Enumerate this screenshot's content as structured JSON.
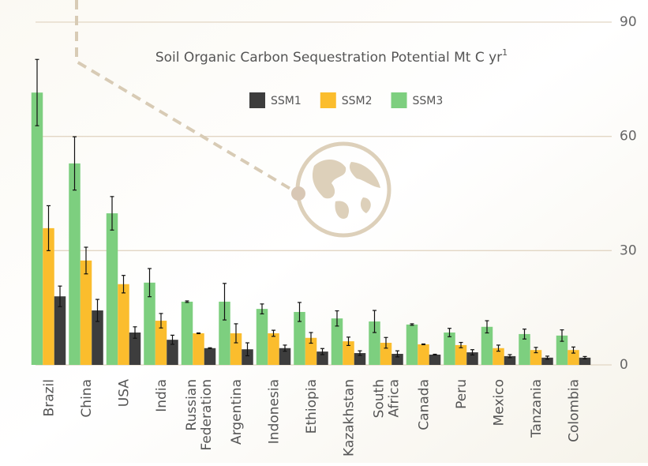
{
  "chart_data": {
    "type": "bar",
    "title": "Soil Organic Carbon Sequestration Potential  Mt C yr",
    "title_superscript": "1",
    "categories": [
      "Brazil",
      "China",
      "USA",
      "India",
      "Russian Federation",
      "Argentina",
      "Indonesia",
      "Ethiopia",
      "Kazakhstan",
      "South Africa",
      "Canada",
      "Peru",
      "Mexico",
      "Tanzania",
      "Colombia"
    ],
    "series": [
      {
        "name": "SSM1",
        "color": "#3d3d3d",
        "values": [
          18,
          14.3,
          8.5,
          6.6,
          4.4,
          4.1,
          4.4,
          3.5,
          3.1,
          2.9,
          2.7,
          3.3,
          2.3,
          1.9,
          1.9
        ],
        "errors": [
          2.7,
          2.9,
          1.5,
          1.2,
          0.1,
          1.7,
          0.8,
          0.8,
          0.6,
          0.8,
          0.1,
          0.7,
          0.4,
          0.4,
          0.3
        ]
      },
      {
        "name": "SSM2",
        "color": "#fbbd2d",
        "values": [
          35.9,
          27.4,
          21.2,
          11.6,
          8.3,
          8.3,
          8.3,
          7.1,
          6.2,
          5.8,
          5.4,
          5.2,
          4.4,
          3.9,
          3.9
        ],
        "errors": [
          5.9,
          3.5,
          2.3,
          1.9,
          0.1,
          2.5,
          0.8,
          1.4,
          1.1,
          1.4,
          0.1,
          0.7,
          0.8,
          0.7,
          0.8
        ]
      },
      {
        "name": "SSM3",
        "color": "#7dcf7f",
        "values": [
          71.5,
          52.9,
          39.8,
          21.6,
          16.6,
          16.6,
          14.7,
          13.9,
          12.2,
          11.4,
          10.6,
          8.5,
          10,
          8.1,
          7.7
        ],
        "errors": [
          8.7,
          7,
          4.4,
          3.7,
          0.2,
          4.8,
          1.3,
          2.5,
          2,
          2.9,
          0.2,
          1.1,
          1.6,
          1.3,
          1.5
        ]
      }
    ],
    "ylim": [
      0,
      90
    ],
    "yticks": [
      0,
      30,
      60,
      90
    ],
    "grid": true,
    "legend": "top"
  }
}
